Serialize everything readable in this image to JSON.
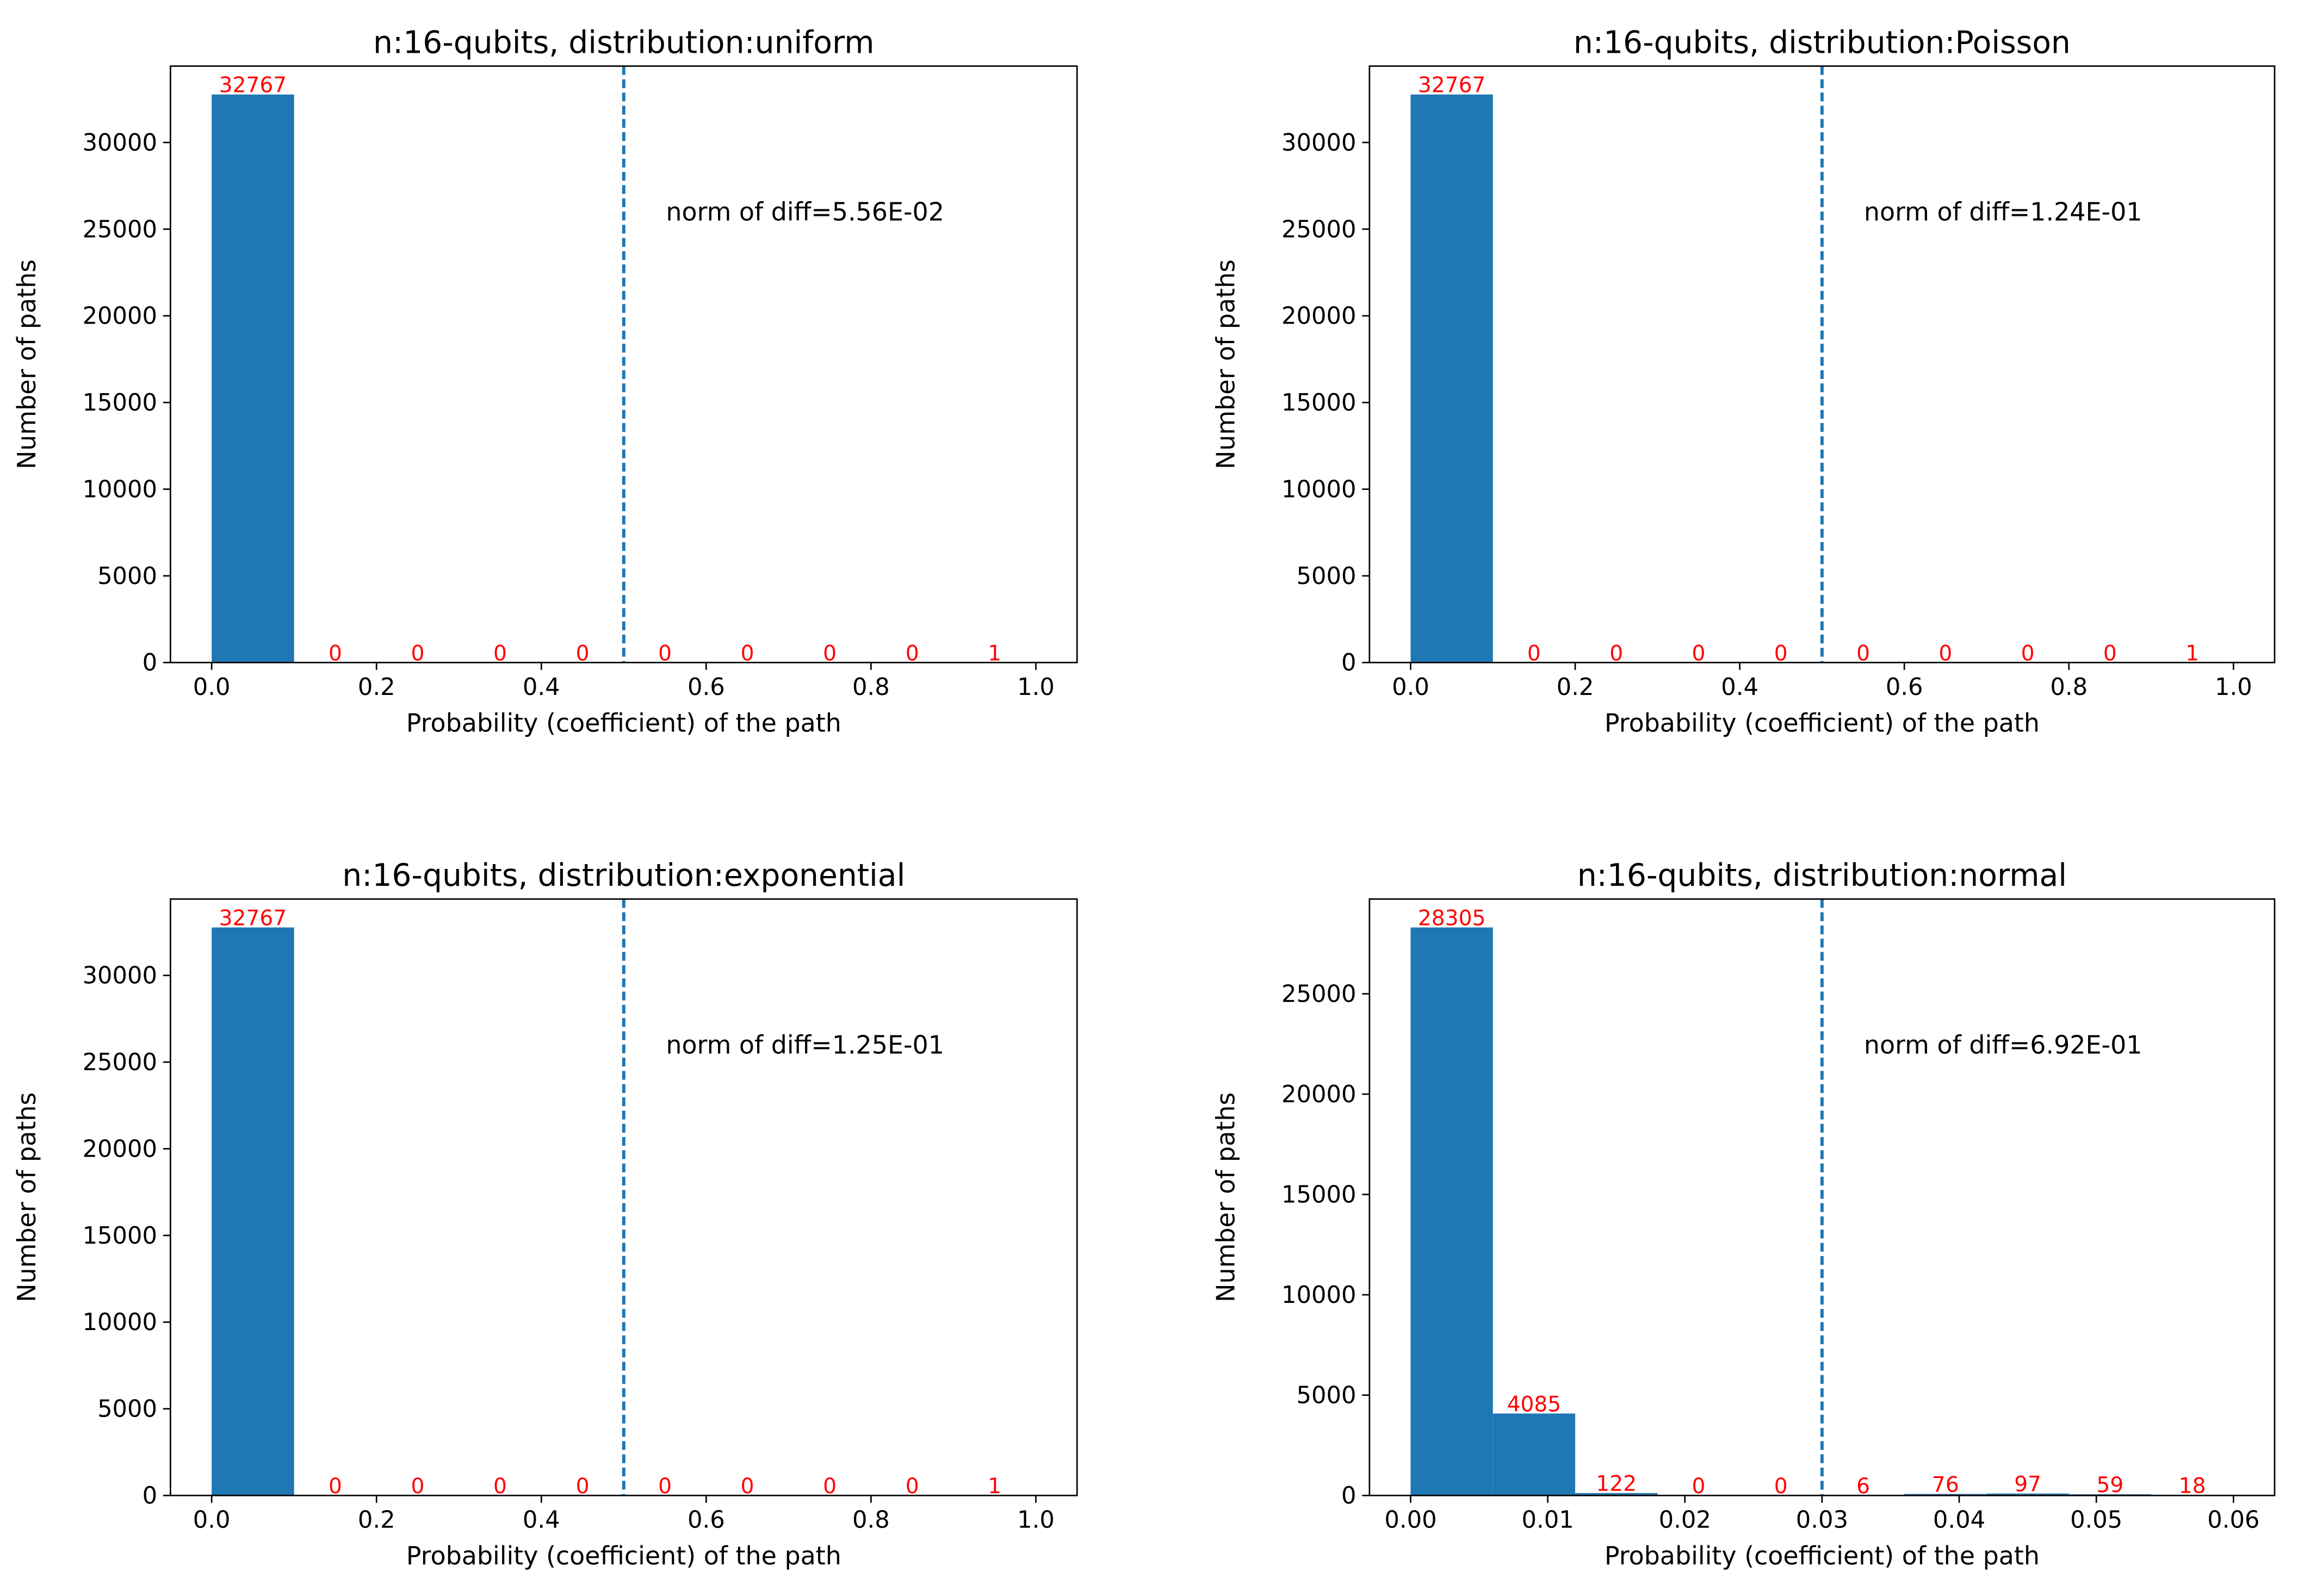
{
  "figure": {
    "xlabel": "Probability (coefficient) of the path",
    "ylabel": "Number of paths",
    "bar_color": "#1f77b4",
    "label_color": "#ff0000",
    "threshold_color": "#1f77b4"
  },
  "chart_data": [
    {
      "type": "bar",
      "title": "n:16-qubits, distribution:uniform",
      "xlabel": "Probability (coefficient) of the path",
      "ylabel": "Number of paths",
      "bin_edges": [
        0.0,
        0.1,
        0.2,
        0.3,
        0.4,
        0.5,
        0.6,
        0.7,
        0.8,
        0.9,
        1.0
      ],
      "values": [
        32767,
        0,
        0,
        0,
        0,
        0,
        0,
        0,
        0,
        1
      ],
      "xlim": [
        -0.05,
        1.05
      ],
      "ylim": [
        0,
        34405
      ],
      "xticks": [
        0.0,
        0.2,
        0.4,
        0.6,
        0.8,
        1.0
      ],
      "xtick_labels": [
        "0.0",
        "0.2",
        "0.4",
        "0.6",
        "0.8",
        "1.0"
      ],
      "yticks": [
        0,
        5000,
        10000,
        15000,
        20000,
        25000,
        30000
      ],
      "ytick_labels": [
        "0",
        "5000",
        "10000",
        "15000",
        "20000",
        "25000",
        "30000"
      ],
      "threshold": 0.5,
      "annotation": "norm of diff=5.56E-02"
    },
    {
      "type": "bar",
      "title": "n:16-qubits, distribution:Poisson",
      "xlabel": "Probability (coefficient) of the path",
      "ylabel": "Number of paths",
      "bin_edges": [
        0.0,
        0.1,
        0.2,
        0.3,
        0.4,
        0.5,
        0.6,
        0.7,
        0.8,
        0.9,
        1.0
      ],
      "values": [
        32767,
        0,
        0,
        0,
        0,
        0,
        0,
        0,
        0,
        1
      ],
      "xlim": [
        -0.05,
        1.05
      ],
      "ylim": [
        0,
        34405
      ],
      "xticks": [
        0.0,
        0.2,
        0.4,
        0.6,
        0.8,
        1.0
      ],
      "xtick_labels": [
        "0.0",
        "0.2",
        "0.4",
        "0.6",
        "0.8",
        "1.0"
      ],
      "yticks": [
        0,
        5000,
        10000,
        15000,
        20000,
        25000,
        30000
      ],
      "ytick_labels": [
        "0",
        "5000",
        "10000",
        "15000",
        "20000",
        "25000",
        "30000"
      ],
      "threshold": 0.5,
      "annotation": "norm of diff=1.24E-01"
    },
    {
      "type": "bar",
      "title": "n:16-qubits, distribution:exponential",
      "xlabel": "Probability (coefficient) of the path",
      "ylabel": "Number of paths",
      "bin_edges": [
        0.0,
        0.1,
        0.2,
        0.3,
        0.4,
        0.5,
        0.6,
        0.7,
        0.8,
        0.9,
        1.0
      ],
      "values": [
        32767,
        0,
        0,
        0,
        0,
        0,
        0,
        0,
        0,
        1
      ],
      "xlim": [
        -0.05,
        1.05
      ],
      "ylim": [
        0,
        34405
      ],
      "xticks": [
        0.0,
        0.2,
        0.4,
        0.6,
        0.8,
        1.0
      ],
      "xtick_labels": [
        "0.0",
        "0.2",
        "0.4",
        "0.6",
        "0.8",
        "1.0"
      ],
      "yticks": [
        0,
        5000,
        10000,
        15000,
        20000,
        25000,
        30000
      ],
      "ytick_labels": [
        "0",
        "5000",
        "10000",
        "15000",
        "20000",
        "25000",
        "30000"
      ],
      "threshold": 0.5,
      "annotation": "norm of diff=1.25E-01"
    },
    {
      "type": "bar",
      "title": "n:16-qubits, distribution:normal",
      "xlabel": "Probability (coefficient) of the path",
      "ylabel": "Number of paths",
      "bin_edges": [
        0.0,
        0.006,
        0.012,
        0.018,
        0.024,
        0.03,
        0.036,
        0.042,
        0.048,
        0.054,
        0.06
      ],
      "values": [
        28305,
        4085,
        122,
        0,
        0,
        6,
        76,
        97,
        59,
        18
      ],
      "xlim": [
        -0.003,
        0.063
      ],
      "ylim": [
        0,
        29720
      ],
      "xticks": [
        0.0,
        0.01,
        0.02,
        0.03,
        0.04,
        0.05,
        0.06
      ],
      "xtick_labels": [
        "0.00",
        "0.01",
        "0.02",
        "0.03",
        "0.04",
        "0.05",
        "0.06"
      ],
      "yticks": [
        0,
        5000,
        10000,
        15000,
        20000,
        25000
      ],
      "ytick_labels": [
        "0",
        "5000",
        "10000",
        "15000",
        "20000",
        "25000"
      ],
      "threshold": 0.03,
      "annotation": "norm of diff=6.92E-01"
    }
  ]
}
